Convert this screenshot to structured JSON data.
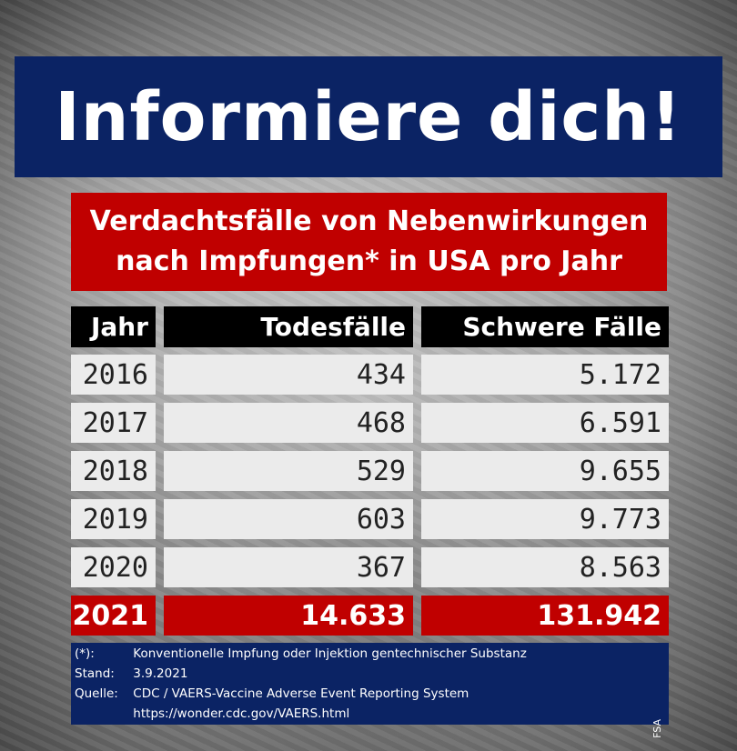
{
  "title": "Informiere dich!",
  "subtitle_lines": [
    "Verdachtsfälle von Nebenwirkungen",
    "nach Impfungen* in USA pro Jahr"
  ],
  "colors": {
    "title_bg": "#0b2364",
    "highlight": "#c00000",
    "header_bg": "#000000",
    "cell_bg": "#ebebeb"
  },
  "chart_data": {
    "type": "table",
    "columns": [
      "Jahr",
      "Todesfälle",
      "Schwere Fälle"
    ],
    "rows": [
      {
        "year": "2016",
        "deaths": "434",
        "severe": "5.172"
      },
      {
        "year": "2017",
        "deaths": "468",
        "severe": "6.591"
      },
      {
        "year": "2018",
        "deaths": "529",
        "severe": "9.655"
      },
      {
        "year": "2019",
        "deaths": "603",
        "severe": "9.773"
      },
      {
        "year": "2020",
        "deaths": "367",
        "severe": "8.563"
      },
      {
        "year": "2021",
        "deaths": "14.633",
        "severe": "131.942"
      }
    ],
    "highlight_row": "2021"
  },
  "footer": {
    "note_label": "(*):",
    "note_text": "Konventionelle Impfung oder Injektion gentechnischer Substanz",
    "stand_label": "Stand:",
    "stand_value": "3.9.2021",
    "source_label": "Quelle:",
    "source_text": "CDC / VAERS-Vaccine Adverse Event Reporting System",
    "source_url": "https://wonder.cdc.gov/VAERS.html",
    "credit": "FSA"
  }
}
